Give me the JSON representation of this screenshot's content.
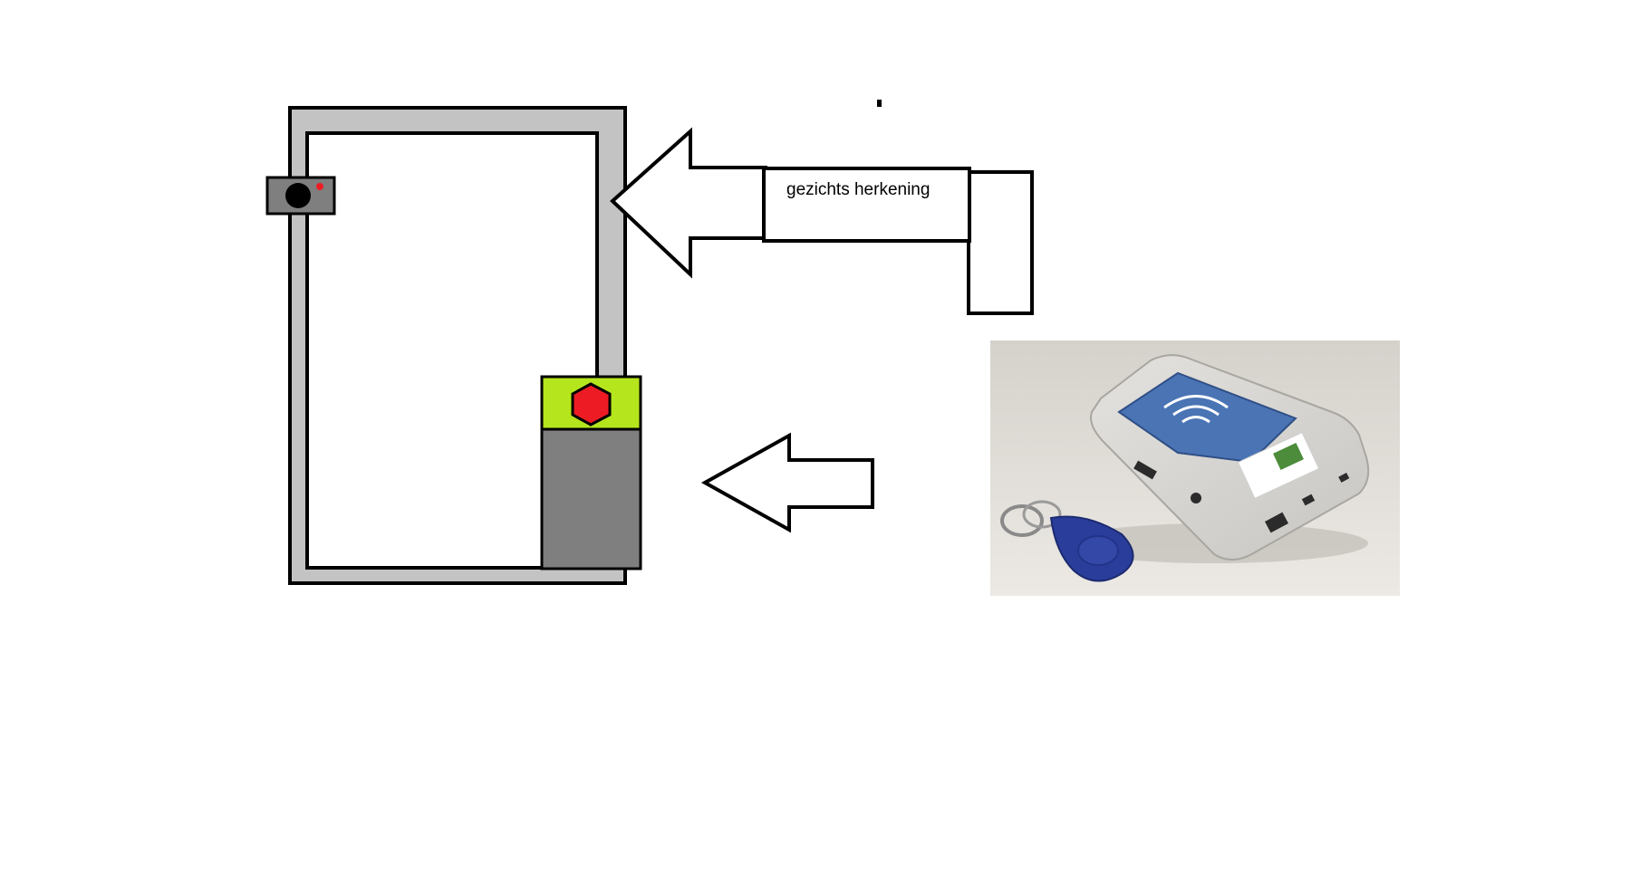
{
  "diagram": {
    "face_recognition_label": "gezichts herkening",
    "photo_subject": "rfid-reader-with-keyfob",
    "colors": {
      "background": "#ffffff",
      "door_frame": "#c3c3c3",
      "door_panel": "#ffffff",
      "outline": "#000000",
      "camera_body": "#7f7f7f",
      "camera_lens": "#000000",
      "camera_led": "#ed1c24",
      "reader_top": "#b5e61d",
      "reader_body": "#7f7f7f",
      "reader_button": "#ed1c24"
    }
  }
}
